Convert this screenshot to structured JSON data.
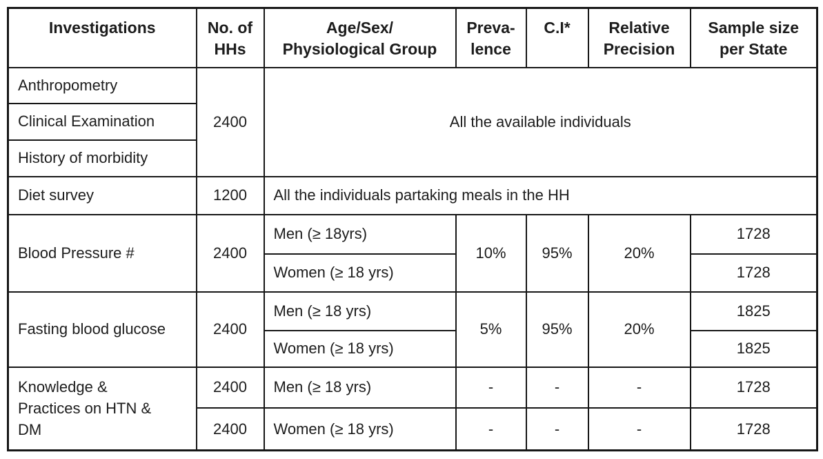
{
  "colors": {
    "background": "#ffffff",
    "border": "#161616",
    "text": "#1c1c1c"
  },
  "header": {
    "investigations": "Investigations",
    "no_of_hhs": "No. of\nHHs",
    "age_sex_group": "Age/Sex/\nPhysiological Group",
    "prevalence": "Preva-\nlence",
    "ci": "C.I*",
    "relative_precision": "Relative\nPrecision",
    "sample_size": "Sample size\nper State"
  },
  "rows": {
    "anthropometry": {
      "investigation": "Anthropometry"
    },
    "clinical_examination": {
      "investigation": "Clinical Examination"
    },
    "history_of_morbidity": {
      "investigation": "History of morbidity"
    },
    "household_group": {
      "no_of_hhs": "2400",
      "note": "All the available individuals"
    },
    "diet_survey": {
      "investigation": "Diet survey",
      "no_of_hhs": "1200",
      "note": "All the individuals partaking meals in the HH"
    },
    "blood_pressure": {
      "investigation": "Blood Pressure #",
      "no_of_hhs": "2400",
      "group_men": "Men (≥ 18yrs)",
      "group_women": "Women (≥ 18 yrs)",
      "prevalence": "10%",
      "ci": "95%",
      "relative_precision": "20%",
      "sample_men": "1728",
      "sample_women": "1728"
    },
    "fasting_blood_glucose": {
      "investigation": "Fasting blood glucose",
      "no_of_hhs": "2400",
      "group_men": "Men (≥ 18 yrs)",
      "group_women": "Women (≥ 18 yrs)",
      "prevalence": "5%",
      "ci": "95%",
      "relative_precision": "20%",
      "sample_men": "1825",
      "sample_women": "1825"
    },
    "knowledge_practices": {
      "investigation": "Knowledge &\nPractices on HTN &\nDM",
      "no_of_hhs_men": "2400",
      "no_of_hhs_women": "2400",
      "group_men": "Men (≥ 18 yrs)",
      "group_women": "Women (≥ 18 yrs)",
      "dash": "-",
      "sample_men": "1728",
      "sample_women": "1728"
    }
  }
}
